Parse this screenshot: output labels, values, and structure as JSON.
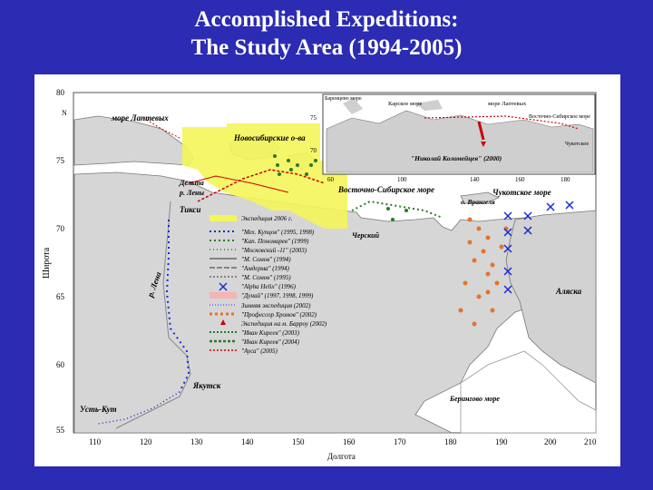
{
  "title_line1": "Accomplished Expeditions:",
  "title_line2": "The Study Area (1994-2005)",
  "map": {
    "y_axis_label": "Широта",
    "x_axis_label": "Долгота",
    "north": "N",
    "y_ticks": [
      "80",
      "75",
      "70",
      "65",
      "60",
      "55"
    ],
    "x_ticks": [
      "110",
      "120",
      "130",
      "140",
      "150",
      "160",
      "170",
      "180",
      "190",
      "200",
      "210"
    ],
    "places": {
      "laptev": "море Лаптевых",
      "novosib": "Новосибирские о-ва",
      "vost_sib": "Восточно-Сибирское море",
      "chukotskoe": "Чукотское море",
      "wrangel": "о. Врангеля",
      "delta1": "Дельта",
      "delta2": "р. Лены",
      "tiksi": "Тикси",
      "lena": "р. Лена",
      "cherskiy": "Черский",
      "alaska": "Аляска",
      "yakutsk": "Якутск",
      "ust_kut": "Усть-Кут",
      "bering": "Берингово море"
    },
    "inset": {
      "x_ticks": [
        "60",
        "100",
        "140",
        "160",
        "180"
      ],
      "y_ticks": [
        "75",
        "70"
      ],
      "ship": "\"Николай Коломейцев\" (2000)",
      "labels": [
        "Баренцево море",
        "Карское море",
        "море Лаптевых",
        "Восточно-Сибирское море",
        "Чукотское"
      ]
    },
    "legend": [
      "Экспедиция 2006 г.",
      "\"Мех. Купцов\" (1995, 1998)",
      "\"Кап. Пономарев\" (1999)",
      "\"Московский -11\" (2003)",
      "\"М. Сомов\" (1994)",
      "\"Амдерма\" (1994)",
      "\"М. Сомов\" (1995)",
      "\"Alpha Helix\" (1996)",
      "\"Дунай\" (1997, 1998, 1999)",
      "Зимняя экспедиция (2002)",
      "\"Профессор Хромов\" (2002)",
      "Экспедиция на м. Барроу (2002)",
      "\"Иван Киреев\" (2003)",
      "\"Иван Киреев\" (2004)",
      "\"Ауса\" (2005)"
    ],
    "colors": {
      "sea": "#ffffff",
      "land": "#d9d9d9",
      "highlight": "#f5f55a",
      "title_bg": "#2b2bb3"
    }
  }
}
